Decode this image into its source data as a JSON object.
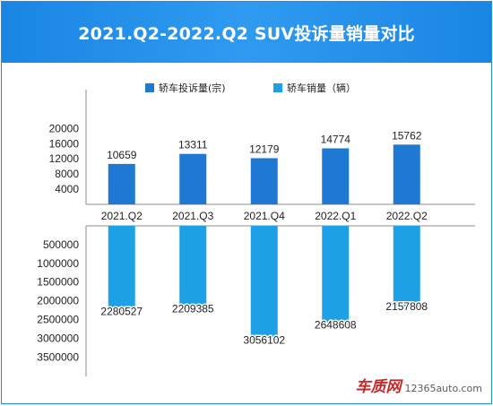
{
  "title": "2021.Q2-2022.Q2 SUV投诉量销量对比",
  "watermark": {
    "logo": "车质网",
    "site": "12365auto.com"
  },
  "colors": {
    "title_bg": "#1a86e4",
    "complaints": "#1f78d1",
    "sales": "#1ea0e6",
    "axis": "#8c8c8c",
    "text": "#222222"
  },
  "chart_data": [
    {
      "type": "bar",
      "panel": "top",
      "categories": [
        "2021.Q2",
        "2021.Q3",
        "2021.Q4",
        "2022.Q1",
        "2022.Q2"
      ],
      "series": [
        {
          "name": "轿车投诉量(宗)",
          "values": [
            10659,
            13311,
            12179,
            14774,
            15762
          ]
        }
      ],
      "yticks": [
        4000,
        8000,
        12000,
        16000,
        20000
      ],
      "ylim": [
        0,
        22000
      ],
      "legend": "top-left",
      "grid": false
    },
    {
      "type": "bar",
      "panel": "bottom",
      "orientation": "downward",
      "categories": [
        "2021.Q2",
        "2021.Q3",
        "2021.Q4",
        "2022.Q1",
        "2022.Q2"
      ],
      "series": [
        {
          "name": "轿车销量（辆）",
          "values": [
            2280527,
            2209385,
            3056102,
            2648608,
            2157808
          ]
        }
      ],
      "yticks": [
        500000,
        1000000,
        1500000,
        2000000,
        2500000,
        3000000,
        3500000
      ],
      "ylim": [
        0,
        4000000
      ],
      "legend": "top-right",
      "grid": false
    }
  ]
}
